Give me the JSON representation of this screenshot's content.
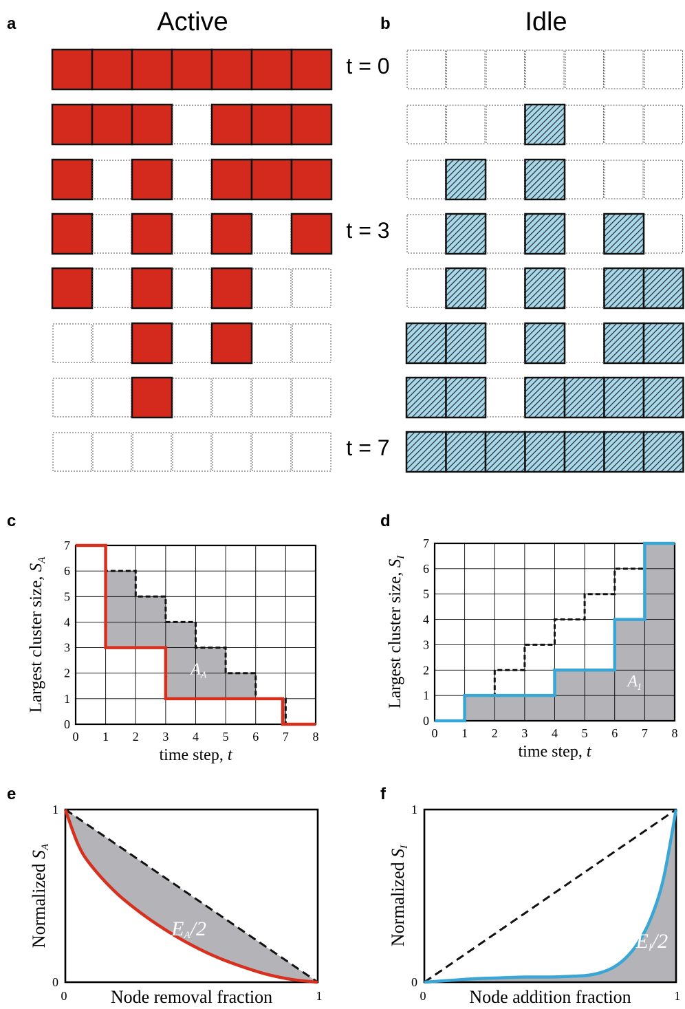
{
  "panels": {
    "a": {
      "letter": "a",
      "title": "Active"
    },
    "b": {
      "letter": "b",
      "title": "Idle"
    },
    "c": {
      "letter": "c"
    },
    "d": {
      "letter": "d"
    },
    "e": {
      "letter": "e"
    },
    "f": {
      "letter": "f"
    }
  },
  "time_labels": [
    "t = 0",
    "t = 3",
    "t = 7"
  ],
  "colors": {
    "active_fill": "#d42a1e",
    "idle_fill": "#a9d8ea",
    "hatch": "#1e2a30",
    "area_gray": "#b4b4b8",
    "red_line": "#d7301f",
    "blue_line": "#3aa6d6",
    "dash": "#111111"
  },
  "active_grid": [
    [
      1,
      1,
      1,
      1,
      1,
      1,
      1
    ],
    [
      1,
      1,
      1,
      0,
      1,
      1,
      1
    ],
    [
      1,
      0,
      1,
      0,
      1,
      1,
      1
    ],
    [
      1,
      0,
      1,
      0,
      1,
      0,
      1
    ],
    [
      1,
      0,
      1,
      0,
      1,
      0,
      0
    ],
    [
      0,
      0,
      1,
      0,
      1,
      0,
      0
    ],
    [
      0,
      0,
      1,
      0,
      0,
      0,
      0
    ],
    [
      0,
      0,
      0,
      0,
      0,
      0,
      0
    ]
  ],
  "idle_grid": [
    [
      0,
      0,
      0,
      0,
      0,
      0,
      0
    ],
    [
      0,
      0,
      0,
      1,
      0,
      0,
      0
    ],
    [
      0,
      1,
      0,
      1,
      0,
      0,
      0
    ],
    [
      0,
      1,
      0,
      1,
      0,
      1,
      0
    ],
    [
      0,
      1,
      0,
      1,
      0,
      1,
      1
    ],
    [
      1,
      1,
      0,
      1,
      0,
      1,
      1
    ],
    [
      1,
      1,
      0,
      1,
      1,
      1,
      1
    ],
    [
      1,
      1,
      1,
      1,
      1,
      1,
      1
    ]
  ],
  "chart_data": [
    {
      "panel": "c",
      "type": "line",
      "xlabel": "time step, t",
      "ylabel": "Largest cluster size, S_A",
      "xlim": [
        0,
        8
      ],
      "ylim": [
        0,
        7
      ],
      "xticks": [
        "0",
        "1",
        "2",
        "3",
        "4",
        "5",
        "6",
        "7",
        "8"
      ],
      "yticks": [
        "0",
        "1",
        "2",
        "3",
        "4",
        "5",
        "6",
        "7"
      ],
      "grid": true,
      "area_label": "A_A",
      "series": [
        {
          "style": "solid-red-step",
          "x": [
            0,
            1,
            1,
            3,
            3,
            6.9,
            6.9,
            8
          ],
          "y": [
            7,
            7,
            3,
            3,
            1,
            1,
            0,
            0
          ]
        },
        {
          "style": "dashed-black-step",
          "x": [
            0,
            1,
            1,
            2,
            2,
            3,
            3,
            4,
            4,
            5,
            5,
            6,
            6,
            7,
            7,
            8
          ],
          "y": [
            7,
            7,
            6,
            6,
            5,
            5,
            4,
            4,
            3,
            3,
            2,
            2,
            1,
            1,
            0,
            0
          ]
        }
      ]
    },
    {
      "panel": "d",
      "type": "line",
      "xlabel": "time step, t",
      "ylabel": "Largest cluster size, S_I",
      "xlim": [
        0,
        8
      ],
      "ylim": [
        0,
        7
      ],
      "xticks": [
        "0",
        "1",
        "2",
        "3",
        "4",
        "5",
        "6",
        "7",
        "8"
      ],
      "yticks": [
        "0",
        "1",
        "2",
        "3",
        "4",
        "5",
        "6",
        "7"
      ],
      "grid": true,
      "area_label": "A_I",
      "series": [
        {
          "style": "solid-blue-step",
          "x": [
            0,
            1,
            1,
            4,
            4,
            6,
            6,
            7,
            7,
            8
          ],
          "y": [
            0,
            0,
            1,
            1,
            2,
            2,
            4,
            4,
            7,
            7
          ]
        },
        {
          "style": "dashed-black-step",
          "x": [
            0,
            1,
            1,
            2,
            2,
            3,
            3,
            4,
            4,
            5,
            5,
            6,
            6,
            7
          ],
          "y": [
            0,
            0,
            1,
            1,
            2,
            2,
            3,
            3,
            4,
            4,
            5,
            5,
            6,
            6
          ]
        }
      ]
    },
    {
      "panel": "e",
      "type": "line",
      "xlabel": "Node removal fraction",
      "ylabel": "Normalized S_A",
      "xlim": [
        0,
        1
      ],
      "ylim": [
        0,
        1
      ],
      "xticks": [
        "0",
        "1"
      ],
      "yticks": [
        "0",
        "1"
      ],
      "area_label": "E_A/2",
      "series": [
        {
          "style": "solid-red",
          "x": [
            0,
            0.05,
            0.1,
            0.2,
            0.3,
            0.4,
            0.5,
            0.6,
            0.7,
            0.8,
            0.9,
            1.0
          ],
          "y": [
            1.0,
            0.8,
            0.68,
            0.52,
            0.4,
            0.3,
            0.215,
            0.145,
            0.09,
            0.045,
            0.015,
            0
          ]
        },
        {
          "style": "dashed-black",
          "x": [
            0,
            1
          ],
          "y": [
            1,
            0
          ]
        }
      ]
    },
    {
      "panel": "f",
      "type": "line",
      "xlabel": "Node addition fraction",
      "ylabel": "Normalized S_I",
      "xlim": [
        0,
        1
      ],
      "ylim": [
        0,
        1
      ],
      "xticks": [
        "0",
        "1"
      ],
      "yticks": [
        "0",
        "1"
      ],
      "area_label": "E_I/2",
      "series": [
        {
          "style": "solid-blue",
          "x": [
            0,
            0.1,
            0.2,
            0.3,
            0.4,
            0.5,
            0.6,
            0.65,
            0.7,
            0.75,
            0.8,
            0.85,
            0.9,
            0.95,
            1.0
          ],
          "y": [
            0,
            0.01,
            0.02,
            0.025,
            0.03,
            0.03,
            0.035,
            0.04,
            0.055,
            0.085,
            0.14,
            0.23,
            0.37,
            0.6,
            1.0
          ]
        },
        {
          "style": "dashed-black",
          "x": [
            0,
            1
          ],
          "y": [
            0,
            1
          ]
        }
      ]
    }
  ]
}
